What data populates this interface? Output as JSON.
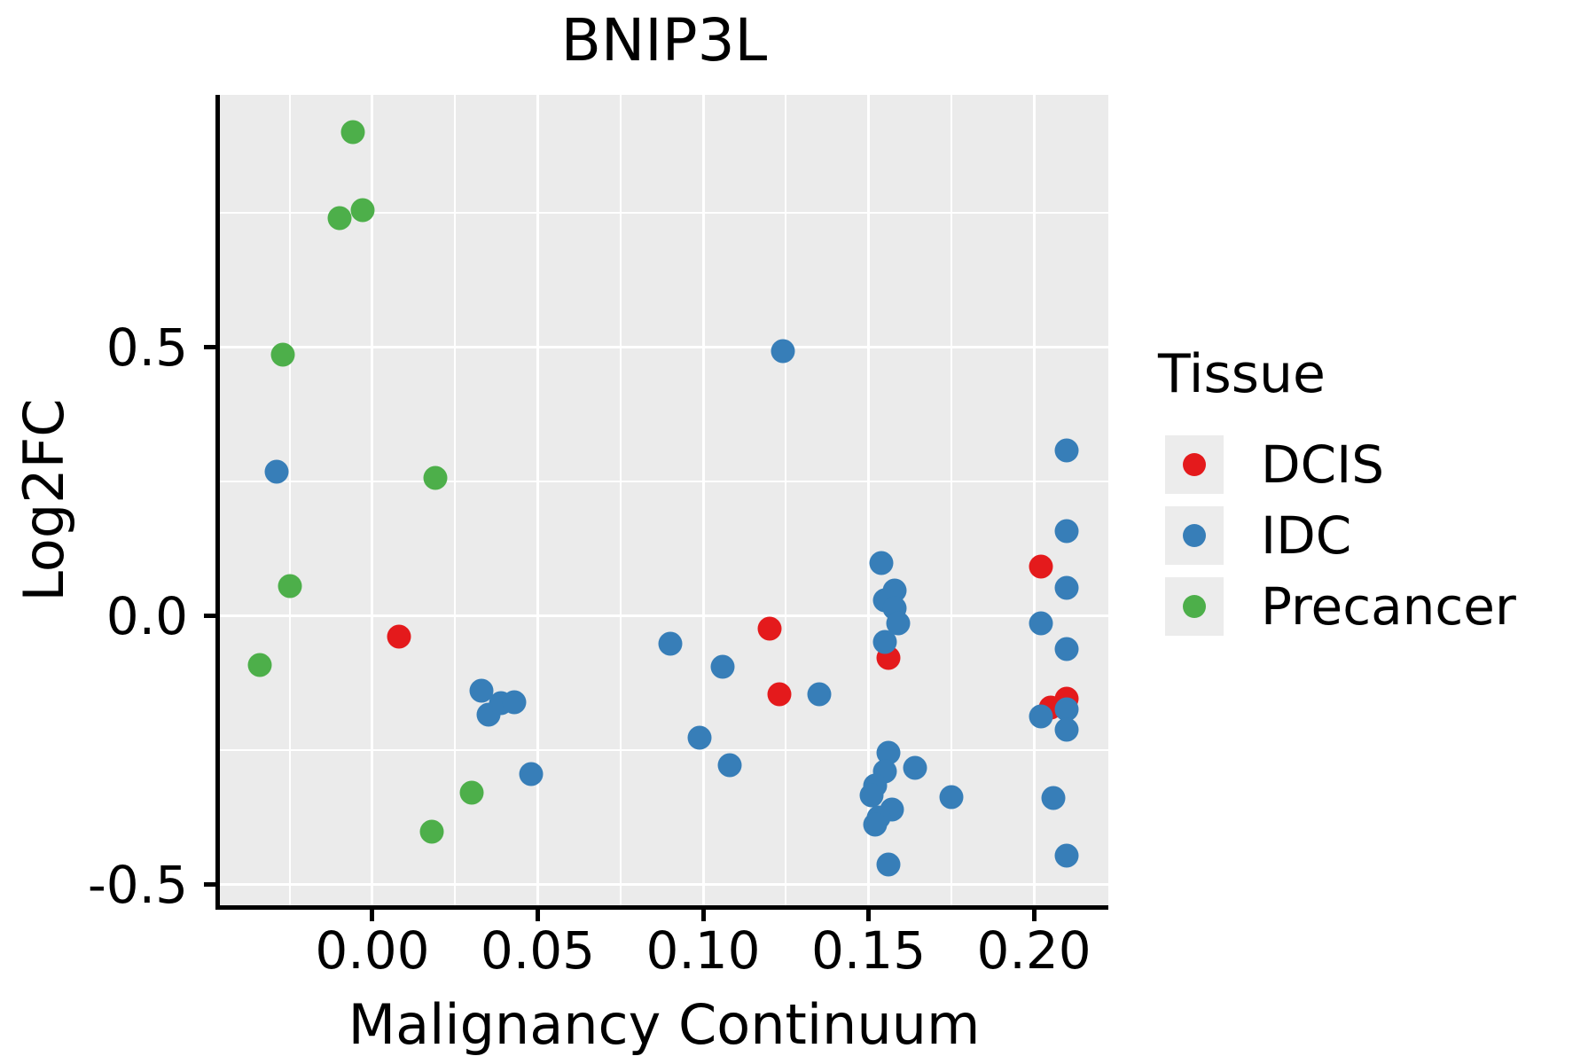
{
  "chart_data": {
    "type": "scatter",
    "title": "BNIP3L",
    "xlabel": "Malignancy Continuum",
    "ylabel": "Log2FC",
    "xlim": [
      -0.0461,
      0.2225
    ],
    "ylim": [
      -0.538,
      0.97
    ],
    "grid": true,
    "panel_background": "#ebebeb",
    "gridline_color": "#ffffff",
    "x_ticks": [
      {
        "value": 0.0,
        "label": "0.00"
      },
      {
        "value": 0.05,
        "label": "0.05"
      },
      {
        "value": 0.1,
        "label": "0.10"
      },
      {
        "value": 0.15,
        "label": "0.15"
      },
      {
        "value": 0.2,
        "label": "0.20"
      }
    ],
    "y_ticks": [
      {
        "value": 0.5,
        "label": "0.5"
      },
      {
        "value": 0.0,
        "label": "0.0"
      },
      {
        "value": -0.5,
        "label": "-0.5"
      }
    ],
    "x_minor": [
      -0.025,
      0.025,
      0.075,
      0.125,
      0.175
    ],
    "y_minor": [
      0.75,
      0.25,
      -0.25
    ],
    "legend": {
      "title": "Tissue",
      "position": "right"
    },
    "series": [
      {
        "name": "DCIS",
        "color": "#e41a1c",
        "points": [
          [
            0.008,
            -0.038
          ],
          [
            0.12,
            -0.023
          ],
          [
            0.123,
            -0.145
          ],
          [
            0.156,
            -0.078
          ],
          [
            0.202,
            0.092
          ],
          [
            0.205,
            -0.17
          ],
          [
            0.21,
            -0.154
          ]
        ]
      },
      {
        "name": "IDC",
        "color": "#377eb8",
        "points": [
          [
            -0.029,
            0.269
          ],
          [
            0.033,
            -0.139
          ],
          [
            0.035,
            -0.184
          ],
          [
            0.039,
            -0.162
          ],
          [
            0.043,
            -0.16
          ],
          [
            0.048,
            -0.294
          ],
          [
            0.09,
            -0.051
          ],
          [
            0.106,
            -0.094
          ],
          [
            0.099,
            -0.226
          ],
          [
            0.108,
            -0.277
          ],
          [
            0.124,
            0.493
          ],
          [
            0.135,
            -0.145
          ],
          [
            0.154,
            0.099
          ],
          [
            0.158,
            0.048
          ],
          [
            0.155,
            0.03
          ],
          [
            0.158,
            0.014
          ],
          [
            0.159,
            -0.013
          ],
          [
            0.155,
            -0.048
          ],
          [
            0.156,
            -0.254
          ],
          [
            0.164,
            -0.282
          ],
          [
            0.155,
            -0.289
          ],
          [
            0.152,
            -0.316
          ],
          [
            0.151,
            -0.333
          ],
          [
            0.157,
            -0.36
          ],
          [
            0.153,
            -0.375
          ],
          [
            0.152,
            -0.388
          ],
          [
            0.156,
            -0.462
          ],
          [
            0.175,
            -0.337
          ],
          [
            0.21,
            0.309
          ],
          [
            0.21,
            0.158
          ],
          [
            0.21,
            0.053
          ],
          [
            0.202,
            -0.013
          ],
          [
            0.21,
            -0.062
          ],
          [
            0.21,
            -0.173
          ],
          [
            0.202,
            -0.187
          ],
          [
            0.21,
            -0.211
          ],
          [
            0.206,
            -0.338
          ],
          [
            0.21,
            -0.446
          ]
        ]
      },
      {
        "name": "Precancer",
        "color": "#4daf4a",
        "points": [
          [
            -0.006,
            0.9
          ],
          [
            -0.01,
            0.74
          ],
          [
            -0.003,
            0.755
          ],
          [
            -0.027,
            0.487
          ],
          [
            0.019,
            0.257
          ],
          [
            -0.025,
            0.056
          ],
          [
            -0.034,
            -0.091
          ],
          [
            0.03,
            -0.329
          ],
          [
            0.018,
            -0.401
          ]
        ]
      }
    ]
  }
}
